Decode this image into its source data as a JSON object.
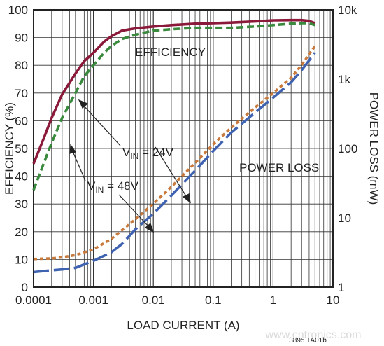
{
  "chart_data": {
    "type": "line",
    "x_scale": "log",
    "xlabel": "LOAD CURRENT (A)",
    "ylabel_left": "EFFICIENCY (%)",
    "ylabel_right": "POWER LOSS (mW)",
    "xlim": [
      0.0001,
      10
    ],
    "ylim_left": [
      0,
      100
    ],
    "ylim_right": [
      1,
      10000
    ],
    "y_right_scale": "log",
    "grid": true,
    "x_ticks": [
      "0.0001",
      "0.001",
      "0.01",
      "0.1",
      "1",
      "10"
    ],
    "y_left_ticks": [
      "0",
      "10",
      "20",
      "30",
      "40",
      "50",
      "60",
      "70",
      "80",
      "90",
      "100"
    ],
    "y_right_ticks": [
      "1",
      "10",
      "100",
      "1k",
      "10k"
    ],
    "series": [
      {
        "group": "efficiency",
        "axis": "left",
        "style": "solid",
        "color": "#8b1a3a",
        "x": [
          0.0001,
          0.00015,
          0.0002,
          0.0003,
          0.0005,
          0.0007,
          0.001,
          0.0015,
          0.002,
          0.003,
          0.005,
          0.01,
          0.02,
          0.05,
          0.1,
          0.2,
          0.5,
          1,
          2,
          3,
          4,
          5
        ],
        "y": [
          44.5,
          54,
          61,
          69.5,
          77,
          81.5,
          84.5,
          88.5,
          90.5,
          92.5,
          93.3,
          94,
          94.5,
          95,
          95.2,
          95.4,
          95.8,
          96.2,
          96.3,
          96.3,
          96.0,
          95.2
        ]
      },
      {
        "group": "efficiency",
        "axis": "left",
        "style": "dashed",
        "color": "#3a8a3e",
        "x": [
          0.0001,
          0.00015,
          0.0002,
          0.0003,
          0.0005,
          0.0007,
          0.001,
          0.0015,
          0.002,
          0.003,
          0.005,
          0.01,
          0.02,
          0.05,
          0.1,
          0.2,
          0.5,
          1,
          2,
          3,
          4,
          5
        ],
        "y": [
          35,
          45,
          52,
          61,
          70,
          76,
          80,
          84.5,
          87,
          89.5,
          91,
          92.5,
          93,
          93.5,
          93.5,
          93.5,
          94,
          94.5,
          95,
          95.2,
          95.2,
          94.5
        ]
      },
      {
        "group": "power_loss",
        "axis": "right",
        "style": "dotted",
        "color": "#c87a3c",
        "x": [
          0.0001,
          0.0002,
          0.0003,
          0.0005,
          0.001,
          0.002,
          0.005,
          0.01,
          0.02,
          0.05,
          0.1,
          0.2,
          0.5,
          1,
          2,
          3,
          5
        ],
        "y": [
          2.55,
          2.6,
          2.7,
          2.9,
          3.5,
          5,
          9.5,
          16,
          28,
          62,
          115,
          200,
          390,
          630,
          1050,
          1600,
          3000
        ]
      },
      {
        "group": "power_loss",
        "axis": "right",
        "style": "long-dash",
        "color": "#3f63b0",
        "x": [
          0.0001,
          0.0002,
          0.0003,
          0.0005,
          0.001,
          0.002,
          0.003,
          0.005,
          0.01,
          0.02,
          0.05,
          0.1,
          0.2,
          0.5,
          1,
          2,
          3,
          5
        ],
        "y": [
          1.65,
          1.75,
          1.8,
          1.9,
          2.4,
          3.2,
          4.2,
          6.8,
          11.5,
          21,
          48,
          92,
          170,
          330,
          540,
          900,
          1350,
          2400
        ]
      }
    ],
    "annotations": [
      {
        "id": "efficiency",
        "text": "EFFICIENCY"
      },
      {
        "id": "power_loss",
        "text": "POWER LOSS"
      },
      {
        "id": "vin24",
        "prefix": "V",
        "sub": "IN",
        "suffix": " = 24V"
      },
      {
        "id": "vin48",
        "prefix": "V",
        "sub": "IN",
        "suffix": " = 48V"
      }
    ],
    "figure_code": "3895 TA01b"
  },
  "watermark": "www.cntronics.com"
}
